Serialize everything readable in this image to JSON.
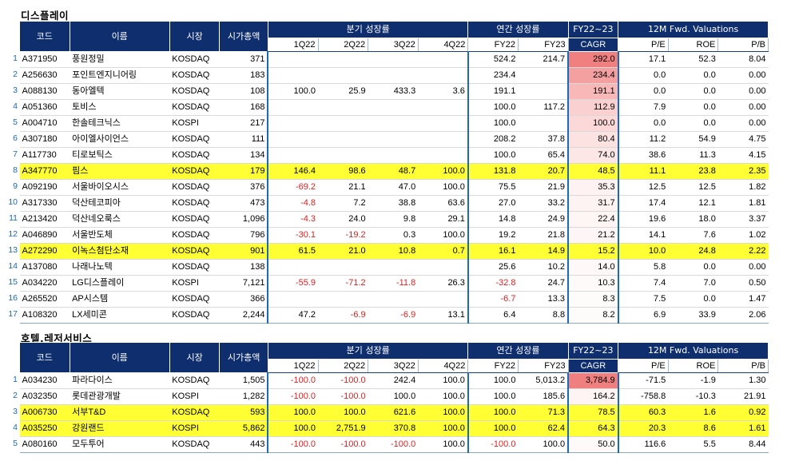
{
  "sections": [
    {
      "title": "디스플레이",
      "headers": {
        "code": "코드",
        "name": "이름",
        "market": "시장",
        "cap": "시가총액",
        "quarterly": "분기 성장률",
        "annual": "연간 성장률",
        "cagr_top": "FY22~23",
        "valuation": "12M Fwd. Valuations",
        "q1": "1Q22",
        "q2": "2Q22",
        "q3": "3Q22",
        "q4": "4Q22",
        "fy22": "FY22",
        "fy23": "FY23",
        "cagr": "CAGR",
        "pe": "P/E",
        "roe": "ROE",
        "pb": "P/B"
      },
      "rows": [
        {
          "idx": "1",
          "code": "A371950",
          "name": "풍원정밀",
          "market": "KOSDAQ",
          "cap": "371",
          "q1": "",
          "q2": "",
          "q3": "",
          "q4": "",
          "fy22": "524.2",
          "fy23": "214.7",
          "cagr": "292.0",
          "pe": "17.1",
          "roe": "52.3",
          "pb": "8.04",
          "hl": false,
          "cagr_color": "#f08080"
        },
        {
          "idx": "2",
          "code": "A256630",
          "name": "포인트엔지니어링",
          "market": "KOSDAQ",
          "cap": "183",
          "q1": "",
          "q2": "",
          "q3": "",
          "q4": "",
          "fy22": "234.4",
          "fy23": "",
          "cagr": "234.4",
          "pe": "0.0",
          "roe": "0.0",
          "pb": "0.00",
          "hl": false,
          "cagr_color": "#f5a0a0"
        },
        {
          "idx": "3",
          "code": "A088130",
          "name": "동아엘텍",
          "market": "KOSDAQ",
          "cap": "108",
          "q1": "100.0",
          "q2": "25.9",
          "q3": "433.3",
          "q4": "3.6",
          "fy22": "191.1",
          "fy23": "",
          "cagr": "191.1",
          "pe": "0.0",
          "roe": "0.0",
          "pb": "0.00",
          "hl": false,
          "cagr_color": "#f8b8b8"
        },
        {
          "idx": "4",
          "code": "A051360",
          "name": "토비스",
          "market": "KOSDAQ",
          "cap": "168",
          "q1": "",
          "q2": "",
          "q3": "",
          "q4": "",
          "fy22": "100.0",
          "fy23": "117.2",
          "cagr": "112.9",
          "pe": "7.9",
          "roe": "0.0",
          "pb": "0.00",
          "hl": false,
          "cagr_color": "#fbd0d0"
        },
        {
          "idx": "5",
          "code": "A004710",
          "name": "한솔테크닉스",
          "market": "KOSPI",
          "cap": "217",
          "q1": "",
          "q2": "",
          "q3": "",
          "q4": "",
          "fy22": "100.0",
          "fy23": "",
          "cagr": "100.0",
          "pe": "0.0",
          "roe": "0.0",
          "pb": "0.00",
          "hl": false,
          "cagr_color": "#fcd8d8"
        },
        {
          "idx": "6",
          "code": "A307180",
          "name": "아이엘사이언스",
          "market": "KOSDAQ",
          "cap": "111",
          "q1": "",
          "q2": "",
          "q3": "",
          "q4": "",
          "fy22": "208.2",
          "fy23": "37.8",
          "cagr": "80.4",
          "pe": "11.2",
          "roe": "54.9",
          "pb": "4.75",
          "hl": false,
          "cagr_color": "#fde2e2"
        },
        {
          "idx": "7",
          "code": "A117730",
          "name": "티로보틱스",
          "market": "KOSDAQ",
          "cap": "134",
          "q1": "",
          "q2": "",
          "q3": "",
          "q4": "",
          "fy22": "100.0",
          "fy23": "65.4",
          "cagr": "74.0",
          "pe": "38.6",
          "roe": "11.3",
          "pb": "4.15",
          "hl": false,
          "cagr_color": "#fde6e6"
        },
        {
          "idx": "8",
          "code": "A347770",
          "name": "핌스",
          "market": "KOSDAQ",
          "cap": "179",
          "q1": "146.4",
          "q2": "98.6",
          "q3": "48.7",
          "q4": "100.0",
          "fy22": "131.8",
          "fy23": "20.7",
          "cagr": "48.5",
          "pe": "11.1",
          "roe": "23.8",
          "pb": "2.35",
          "hl": true,
          "cagr_color": "#feeeee"
        },
        {
          "idx": "9",
          "code": "A092190",
          "name": "서울바이오시스",
          "market": "KOSDAQ",
          "cap": "376",
          "q1": "-69.2",
          "q2": "21.1",
          "q3": "47.0",
          "q4": "100.0",
          "fy22": "75.5",
          "fy23": "21.9",
          "cagr": "35.3",
          "pe": "12.5",
          "roe": "12.5",
          "pb": "1.82",
          "hl": false,
          "cagr_color": "#fef2f2"
        },
        {
          "idx": "10",
          "code": "A317330",
          "name": "덕산테코피아",
          "market": "KOSDAQ",
          "cap": "473",
          "q1": "-4.8",
          "q2": "7.2",
          "q3": "38.8",
          "q4": "63.6",
          "fy22": "27.0",
          "fy23": "33.2",
          "cagr": "31.7",
          "pe": "17.4",
          "roe": "12.1",
          "pb": "1.81",
          "hl": false,
          "cagr_color": "#fef3f3"
        },
        {
          "idx": "11",
          "code": "A213420",
          "name": "덕산네오룩스",
          "market": "KOSDAQ",
          "cap": "1,096",
          "q1": "-4.3",
          "q2": "24.0",
          "q3": "9.8",
          "q4": "29.1",
          "fy22": "14.8",
          "fy23": "24.9",
          "cagr": "22.4",
          "pe": "19.6",
          "roe": "18.0",
          "pb": "3.37",
          "hl": false,
          "cagr_color": "#fef5f5"
        },
        {
          "idx": "12",
          "code": "A046890",
          "name": "서울반도체",
          "market": "KOSDAQ",
          "cap": "796",
          "q1": "-30.1",
          "q2": "-19.2",
          "q3": "0.3",
          "q4": "100.0",
          "fy22": "19.2",
          "fy23": "21.8",
          "cagr": "21.2",
          "pe": "14.1",
          "roe": "7.6",
          "pb": "1.02",
          "hl": false,
          "cagr_color": "#fef6f6"
        },
        {
          "idx": "13",
          "code": "A272290",
          "name": "이녹스첨단소재",
          "market": "KOSDAQ",
          "cap": "901",
          "q1": "61.5",
          "q2": "21.0",
          "q3": "10.8",
          "q4": "0.7",
          "fy22": "16.1",
          "fy23": "14.9",
          "cagr": "15.2",
          "pe": "10.0",
          "roe": "24.8",
          "pb": "2.22",
          "hl": true,
          "cagr_color": "#fef8f8"
        },
        {
          "idx": "14",
          "code": "A137080",
          "name": "나래나노텍",
          "market": "KOSDAQ",
          "cap": "138",
          "q1": "",
          "q2": "",
          "q3": "",
          "q4": "",
          "fy22": "25.6",
          "fy23": "10.2",
          "cagr": "14.0",
          "pe": "5.8",
          "roe": "0.0",
          "pb": "0.00",
          "hl": false,
          "cagr_color": "#fef8f8"
        },
        {
          "idx": "15",
          "code": "A034220",
          "name": "LG디스플레이",
          "market": "KOSPI",
          "cap": "7,121",
          "q1": "-55.9",
          "q2": "-71.2",
          "q3": "-11.8",
          "q4": "26.3",
          "fy22": "-32.8",
          "fy23": "24.7",
          "cagr": "10.3",
          "pe": "7.4",
          "roe": "7.0",
          "pb": "0.50",
          "hl": false,
          "cagr_color": "#fefafa"
        },
        {
          "idx": "16",
          "code": "A265520",
          "name": "AP시스템",
          "market": "KOSDAQ",
          "cap": "366",
          "q1": "",
          "q2": "",
          "q3": "",
          "q4": "",
          "fy22": "-6.7",
          "fy23": "13.3",
          "cagr": "8.3",
          "pe": "7.5",
          "roe": "0.0",
          "pb": "1.47",
          "hl": false,
          "cagr_color": "#fefbfb"
        },
        {
          "idx": "17",
          "code": "A108320",
          "name": "LX세미콘",
          "market": "KOSDAQ",
          "cap": "2,244",
          "q1": "47.2",
          "q2": "-6.9",
          "q3": "-6.9",
          "q4": "13.1",
          "fy22": "6.4",
          "fy23": "8.8",
          "cagr": "8.2",
          "pe": "6.9",
          "roe": "33.9",
          "pb": "2.06",
          "hl": false,
          "cagr_color": "#fefbfb"
        }
      ]
    },
    {
      "title": "호텔,레저서비스",
      "headers": {
        "code": "코드",
        "name": "이름",
        "market": "시장",
        "cap": "시가총액",
        "quarterly": "분기 성장률",
        "annual": "연간 성장률",
        "cagr_top": "FY22~23",
        "valuation": "12M Fwd. Valuations",
        "q1": "1Q22",
        "q2": "2Q22",
        "q3": "3Q22",
        "q4": "4Q22",
        "fy22": "FY22",
        "fy23": "FY23",
        "cagr": "CAGR",
        "pe": "P/E",
        "roe": "ROE",
        "pb": "P/B"
      },
      "rows": [
        {
          "idx": "1",
          "code": "A034230",
          "name": "파라다이스",
          "market": "KOSDAQ",
          "cap": "1,505",
          "q1": "-100.0",
          "q2": "-100.0",
          "q3": "242.4",
          "q4": "100.0",
          "fy22": "100.0",
          "fy23": "5,013.2",
          "cagr": "3,784.9",
          "pe": "-71.5",
          "roe": "-1.9",
          "pb": "1.30",
          "hl": false,
          "cagr_color": "#f08080"
        },
        {
          "idx": "2",
          "code": "A032350",
          "name": "롯데관광개발",
          "market": "KOSPI",
          "cap": "1,282",
          "q1": "-100.0",
          "q2": "-100.0",
          "q3": "100.0",
          "q4": "100.0",
          "fy22": "100.0",
          "fy23": "185.6",
          "cagr": "164.2",
          "pe": "-758.8",
          "roe": "-10.3",
          "pb": "21.91",
          "hl": false,
          "cagr_color": "#fef4f4"
        },
        {
          "idx": "3",
          "code": "A006730",
          "name": "서부T&D",
          "market": "KOSDAQ",
          "cap": "593",
          "q1": "100.0",
          "q2": "100.0",
          "q3": "621.6",
          "q4": "100.0",
          "fy22": "100.0",
          "fy23": "71.3",
          "cagr": "78.5",
          "pe": "60.3",
          "roe": "1.6",
          "pb": "0.92",
          "hl": true,
          "cagr_color": "#fef8f8"
        },
        {
          "idx": "4",
          "code": "A035250",
          "name": "강원랜드",
          "market": "KOSPI",
          "cap": "5,862",
          "q1": "100.0",
          "q2": "2,751.9",
          "q3": "370.8",
          "q4": "100.0",
          "fy22": "100.0",
          "fy23": "62.4",
          "cagr": "64.3",
          "pe": "20.3",
          "roe": "8.6",
          "pb": "1.61",
          "hl": true,
          "cagr_color": "#fef9f9"
        },
        {
          "idx": "5",
          "code": "A080160",
          "name": "모두투어",
          "market": "KOSDAQ",
          "cap": "443",
          "q1": "-100.0",
          "q2": "-100.0",
          "q3": "-100.0",
          "q4": "100.0",
          "fy22": "-100.0",
          "fy23": "100.0",
          "cagr": "50.0",
          "pe": "116.6",
          "roe": "5.5",
          "pb": "8.44",
          "hl": false,
          "cagr_color": "#fefafa"
        }
      ]
    }
  ]
}
